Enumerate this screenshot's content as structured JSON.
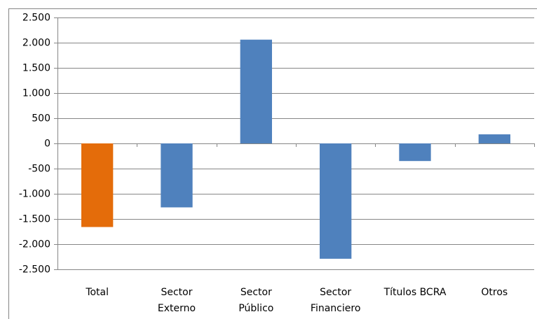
{
  "chart_data": {
    "type": "bar",
    "categories": [
      [
        "Total"
      ],
      [
        "Sector",
        "Externo"
      ],
      [
        "Sector",
        "Público"
      ],
      [
        "Sector",
        "Financiero"
      ],
      [
        "Títulos BCRA"
      ],
      [
        "Otros"
      ]
    ],
    "values": [
      -1660,
      -1270,
      2060,
      -2290,
      -350,
      180
    ],
    "colors": [
      "#e46c0a",
      "#4f81bd",
      "#4f81bd",
      "#4f81bd",
      "#4f81bd",
      "#4f81bd"
    ],
    "ylim": [
      -2500,
      2500
    ],
    "yticks": [
      {
        "value": -2500,
        "label": "-2.500"
      },
      {
        "value": -2000,
        "label": "-2.000"
      },
      {
        "value": -1500,
        "label": "-1.500"
      },
      {
        "value": -1000,
        "label": "-1.000"
      },
      -500,
      0,
      500,
      {
        "value": 1000,
        "label": "1.000"
      },
      {
        "value": 1500,
        "label": "1.500"
      },
      {
        "value": 2000,
        "label": "2.000"
      },
      {
        "value": 2500,
        "label": "2.500"
      }
    ],
    "grid": true
  }
}
